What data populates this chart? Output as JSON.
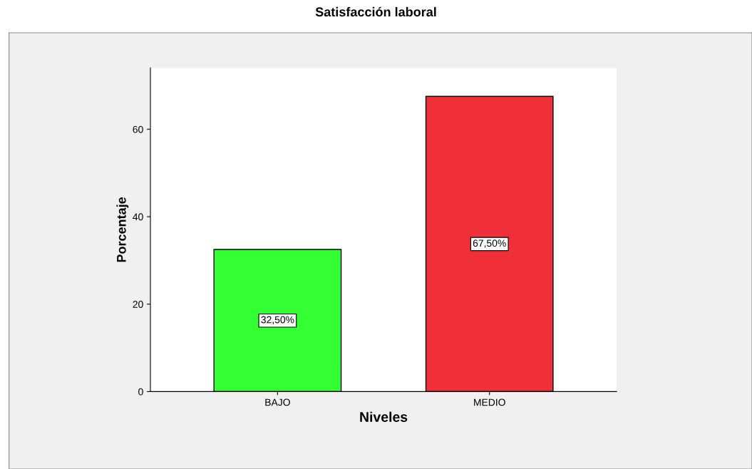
{
  "chart_data": {
    "type": "bar",
    "title": "Satisfacción laboral",
    "xlabel": "Niveles",
    "ylabel": "Porcentaje",
    "categories": [
      "BAJO",
      "MEDIO"
    ],
    "values": [
      32.5,
      67.5
    ],
    "colors": [
      "#33ff33",
      "#f03038"
    ],
    "value_labels": [
      "32,50%",
      "67,50%"
    ],
    "ylim": [
      0,
      74
    ],
    "yticks": [
      0,
      20,
      40,
      60
    ],
    "grid": false
  }
}
